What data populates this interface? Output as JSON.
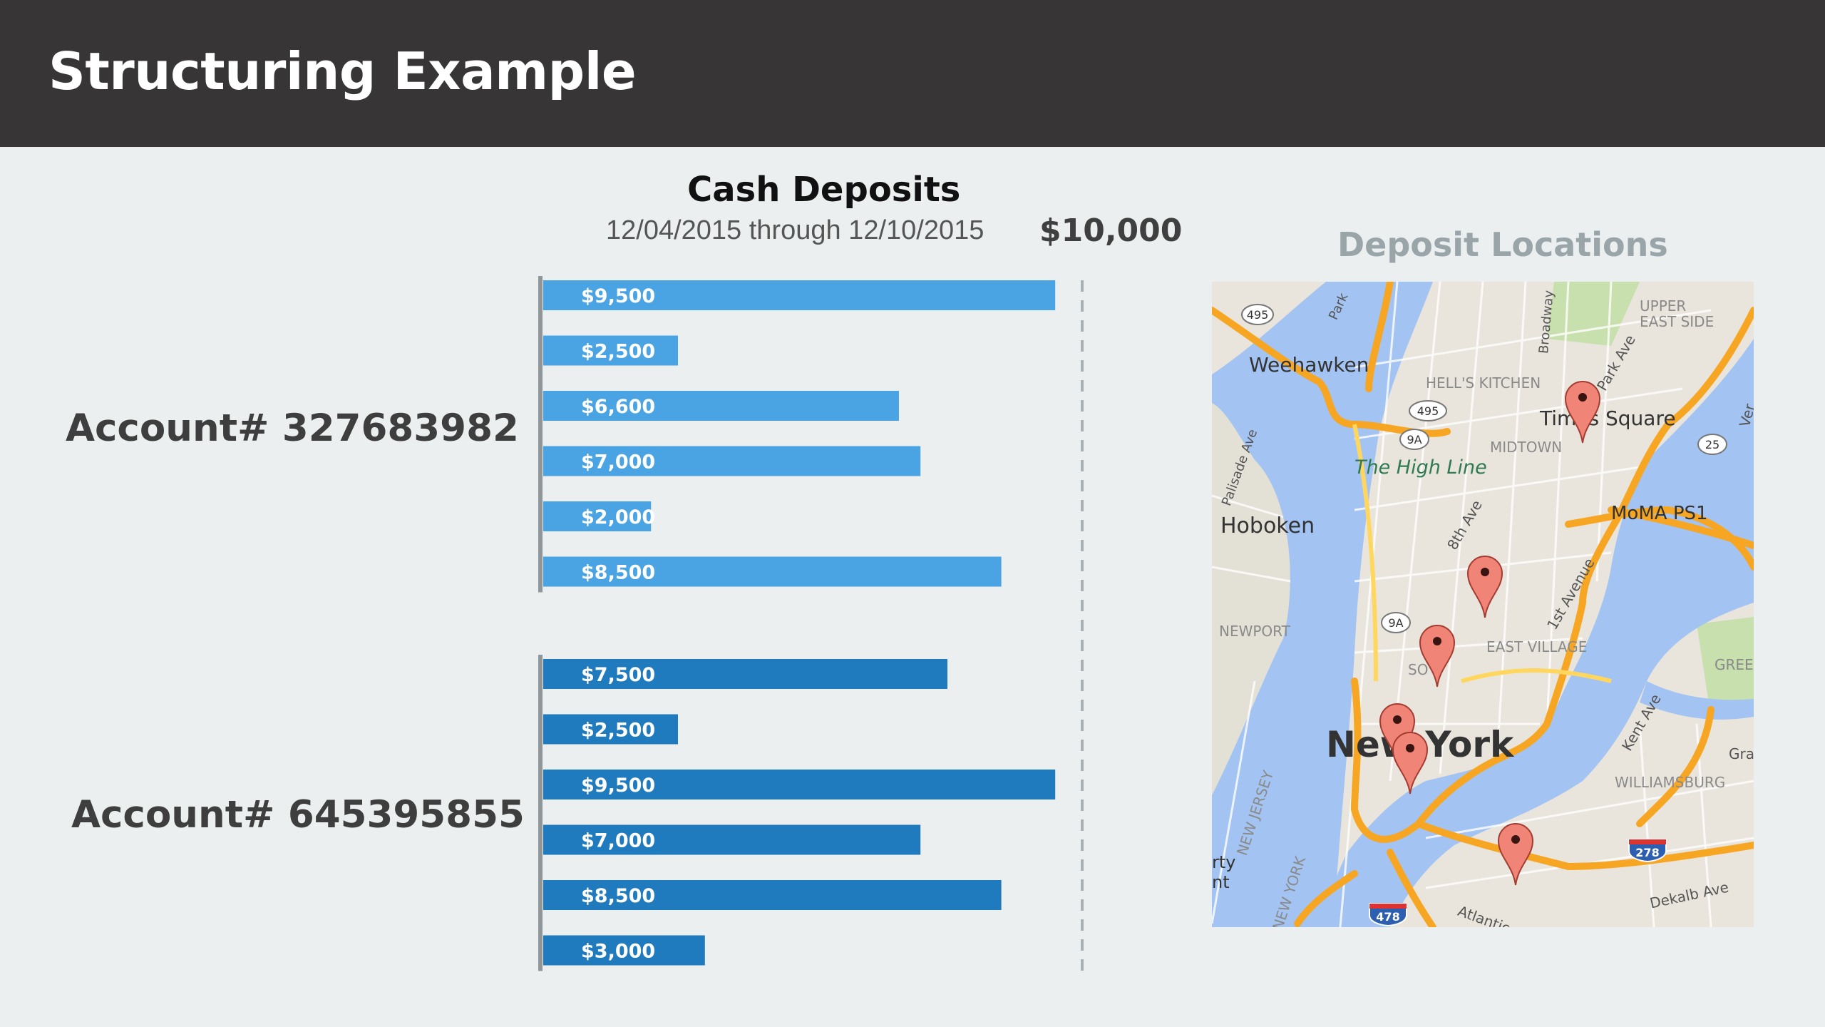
{
  "header": {
    "title": "Structuring Example"
  },
  "accounts": [
    {
      "label": "Account# 327683982"
    },
    {
      "label": "Account# 645395855"
    }
  ],
  "chart_data": {
    "type": "bar",
    "orientation": "horizontal",
    "title": "Cash Deposits",
    "subtitle": "12/04/2015 through 12/10/2015",
    "threshold": {
      "value": 10000,
      "label": "$10,000",
      "style": "dashed vertical line"
    },
    "xlim": [
      0,
      10000
    ],
    "grid": false,
    "series": [
      {
        "name": "Account# 327683982",
        "color": "#4aa3e3",
        "values": [
          9500,
          2500,
          6600,
          7000,
          2000,
          8500
        ],
        "labels": [
          "$9,500",
          "$2,500",
          "$6,600",
          "$7,000",
          "$2,000",
          "$8,500"
        ]
      },
      {
        "name": "Account# 645395855",
        "color": "#1f7bbd",
        "values": [
          7500,
          2500,
          9500,
          7000,
          8500,
          3000
        ],
        "labels": [
          "$7,500",
          "$2,500",
          "$9,500",
          "$7,000",
          "$8,500",
          "$3,000"
        ]
      }
    ]
  },
  "map": {
    "title": "Deposit Locations",
    "pin_count": 6,
    "places": {
      "weehawken": "Weehawken",
      "hells_kitchen": "HELL'S KITCHEN",
      "times_square": "Times Square",
      "midtown": "MIDTOWN",
      "high_line": "The High Line",
      "hoboken": "Hoboken",
      "moma": "MoMA PS1",
      "newport": "NEWPORT",
      "east_village": "EAST VILLAGE",
      "soho": "SO",
      "new_york": "New York",
      "williamsburg": "WILLIAMSBURG",
      "upper_east_side_1": "UPPER",
      "upper_east_side_2": "EAST SIDE",
      "greenpoint": "GREEN",
      "new_jersey": "NEW JERSEY",
      "new_york_state": "NEW YORK",
      "eighth_ave": "8th Ave",
      "first_ave": "1st Avenue",
      "park_ave": "Park Ave",
      "kent_ave": "Kent Ave",
      "dekalb_ave": "Dekalb Ave",
      "atlantic": "Atlantic",
      "palisade": "Palisade Ave",
      "broadway": "Broadway",
      "park": "Park",
      "gra": "Gra",
      "ver": "Ver",
      "city_1": "rty",
      "city_2": "nt"
    },
    "shields": [
      "495",
      "495",
      "9A",
      "9A",
      "25",
      "278",
      "478"
    ]
  }
}
